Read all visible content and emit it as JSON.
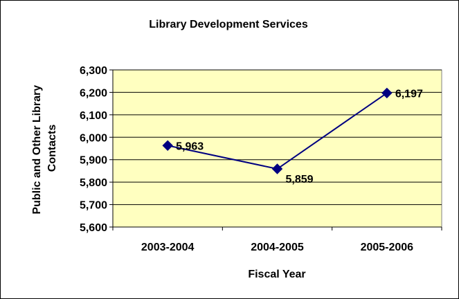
{
  "chart_data": {
    "type": "line",
    "title": "Library Development Services",
    "xlabel": "Fiscal Year",
    "ylabel": [
      "Public and Other Library",
      "Contacts"
    ],
    "categories": [
      "2003-2004",
      "2004-2005",
      "2005-2006"
    ],
    "values": [
      5963,
      5859,
      6197
    ],
    "data_labels": [
      "5,963",
      "5,859",
      "6,197"
    ],
    "ylim": [
      5600,
      6300
    ],
    "y_ticks": [
      5600,
      5700,
      5800,
      5900,
      6000,
      6100,
      6200,
      6300
    ],
    "y_tick_labels": [
      "5,600",
      "5,700",
      "5,800",
      "5,900",
      "6,000",
      "6,100",
      "6,200",
      "6,300"
    ],
    "grid": true,
    "legend": "none",
    "colors": {
      "plot_background": "#FFFFC0",
      "line": "#000080",
      "marker": "#000080",
      "grid": "#000000"
    }
  }
}
